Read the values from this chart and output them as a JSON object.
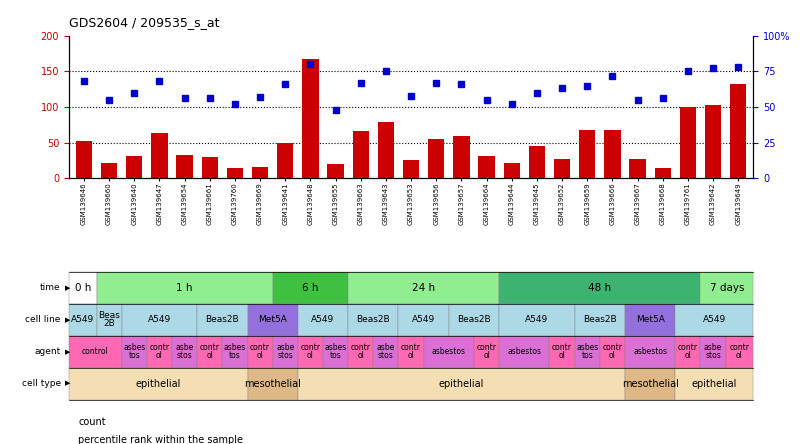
{
  "title": "GDS2604 / 209535_s_at",
  "samples": [
    "GSM139646",
    "GSM139660",
    "GSM139640",
    "GSM139647",
    "GSM139654",
    "GSM139661",
    "GSM139760",
    "GSM139669",
    "GSM139641",
    "GSM139648",
    "GSM139655",
    "GSM139663",
    "GSM139643",
    "GSM139653",
    "GSM139656",
    "GSM139657",
    "GSM139664",
    "GSM139644",
    "GSM139645",
    "GSM139652",
    "GSM139659",
    "GSM139666",
    "GSM139667",
    "GSM139668",
    "GSM139761",
    "GSM139642",
    "GSM139649"
  ],
  "counts": [
    52,
    22,
    32,
    64,
    33,
    30,
    14,
    16,
    50,
    167,
    20,
    66,
    79,
    26,
    55,
    60,
    32,
    22,
    45,
    27,
    68,
    68,
    27,
    14,
    100,
    103,
    132
  ],
  "percentiles": [
    68,
    55,
    60,
    68,
    56,
    56,
    52,
    57,
    66,
    80,
    48,
    67,
    75,
    58,
    67,
    66,
    55,
    52,
    60,
    63,
    65,
    72,
    55,
    56,
    75,
    77,
    78
  ],
  "time_groups": [
    {
      "label": "0 h",
      "start": 0,
      "end": 1,
      "color": "#ffffff"
    },
    {
      "label": "1 h",
      "start": 1,
      "end": 8,
      "color": "#90ee90"
    },
    {
      "label": "6 h",
      "start": 8,
      "end": 11,
      "color": "#40c040"
    },
    {
      "label": "24 h",
      "start": 11,
      "end": 17,
      "color": "#90ee90"
    },
    {
      "label": "48 h",
      "start": 17,
      "end": 25,
      "color": "#3cb371"
    },
    {
      "label": "7 days",
      "start": 25,
      "end": 27,
      "color": "#90ee90"
    }
  ],
  "cellline_groups": [
    {
      "label": "A549",
      "start": 0,
      "end": 1,
      "color": "#add8e6"
    },
    {
      "label": "Beas\n2B",
      "start": 1,
      "end": 2,
      "color": "#add8e6"
    },
    {
      "label": "A549",
      "start": 2,
      "end": 5,
      "color": "#add8e6"
    },
    {
      "label": "Beas2B",
      "start": 5,
      "end": 7,
      "color": "#add8e6"
    },
    {
      "label": "Met5A",
      "start": 7,
      "end": 9,
      "color": "#9370db"
    },
    {
      "label": "A549",
      "start": 9,
      "end": 11,
      "color": "#add8e6"
    },
    {
      "label": "Beas2B",
      "start": 11,
      "end": 13,
      "color": "#add8e6"
    },
    {
      "label": "A549",
      "start": 13,
      "end": 15,
      "color": "#add8e6"
    },
    {
      "label": "Beas2B",
      "start": 15,
      "end": 17,
      "color": "#add8e6"
    },
    {
      "label": "A549",
      "start": 17,
      "end": 20,
      "color": "#add8e6"
    },
    {
      "label": "Beas2B",
      "start": 20,
      "end": 22,
      "color": "#add8e6"
    },
    {
      "label": "Met5A",
      "start": 22,
      "end": 24,
      "color": "#9370db"
    },
    {
      "label": "A549",
      "start": 24,
      "end": 27,
      "color": "#add8e6"
    }
  ],
  "agent_groups": [
    {
      "label": "control",
      "start": 0,
      "end": 2,
      "color": "#ff69b4"
    },
    {
      "label": "asbes\ntos",
      "start": 2,
      "end": 3,
      "color": "#da70d6"
    },
    {
      "label": "contr\nol",
      "start": 3,
      "end": 4,
      "color": "#ff69b4"
    },
    {
      "label": "asbe\nstos",
      "start": 4,
      "end": 5,
      "color": "#da70d6"
    },
    {
      "label": "contr\nol",
      "start": 5,
      "end": 6,
      "color": "#ff69b4"
    },
    {
      "label": "asbes\ntos",
      "start": 6,
      "end": 7,
      "color": "#da70d6"
    },
    {
      "label": "contr\nol",
      "start": 7,
      "end": 8,
      "color": "#ff69b4"
    },
    {
      "label": "asbe\nstos",
      "start": 8,
      "end": 9,
      "color": "#da70d6"
    },
    {
      "label": "contr\nol",
      "start": 9,
      "end": 10,
      "color": "#ff69b4"
    },
    {
      "label": "asbes\ntos",
      "start": 10,
      "end": 11,
      "color": "#da70d6"
    },
    {
      "label": "contr\nol",
      "start": 11,
      "end": 12,
      "color": "#ff69b4"
    },
    {
      "label": "asbe\nstos",
      "start": 12,
      "end": 13,
      "color": "#da70d6"
    },
    {
      "label": "contr\nol",
      "start": 13,
      "end": 14,
      "color": "#ff69b4"
    },
    {
      "label": "asbestos",
      "start": 14,
      "end": 16,
      "color": "#da70d6"
    },
    {
      "label": "contr\nol",
      "start": 16,
      "end": 17,
      "color": "#ff69b4"
    },
    {
      "label": "asbestos",
      "start": 17,
      "end": 19,
      "color": "#da70d6"
    },
    {
      "label": "contr\nol",
      "start": 19,
      "end": 20,
      "color": "#ff69b4"
    },
    {
      "label": "asbes\ntos",
      "start": 20,
      "end": 21,
      "color": "#da70d6"
    },
    {
      "label": "contr\nol",
      "start": 21,
      "end": 22,
      "color": "#ff69b4"
    },
    {
      "label": "asbestos",
      "start": 22,
      "end": 24,
      "color": "#da70d6"
    },
    {
      "label": "contr\nol",
      "start": 24,
      "end": 25,
      "color": "#ff69b4"
    },
    {
      "label": "asbe\nstos",
      "start": 25,
      "end": 26,
      "color": "#da70d6"
    },
    {
      "label": "contr\nol",
      "start": 26,
      "end": 27,
      "color": "#ff69b4"
    }
  ],
  "celltype_groups": [
    {
      "label": "epithelial",
      "start": 0,
      "end": 7,
      "color": "#f5deb3"
    },
    {
      "label": "mesothelial",
      "start": 7,
      "end": 9,
      "color": "#deb887"
    },
    {
      "label": "epithelial",
      "start": 9,
      "end": 22,
      "color": "#f5deb3"
    },
    {
      "label": "mesothelial",
      "start": 22,
      "end": 24,
      "color": "#deb887"
    },
    {
      "label": "epithelial",
      "start": 24,
      "end": 27,
      "color": "#f5deb3"
    }
  ],
  "bar_color": "#cc0000",
  "dot_color": "#0000cc",
  "left_ylim": [
    0,
    200
  ],
  "right_ylim": [
    0,
    100
  ],
  "left_yticks": [
    0,
    50,
    100,
    150,
    200
  ],
  "right_yticks": [
    0,
    25,
    50,
    75,
    100
  ],
  "left_yticklabels": [
    "0",
    "50",
    "100",
    "150",
    "200"
  ],
  "right_yticklabels": [
    "0",
    "25",
    "50",
    "75",
    "100%"
  ]
}
